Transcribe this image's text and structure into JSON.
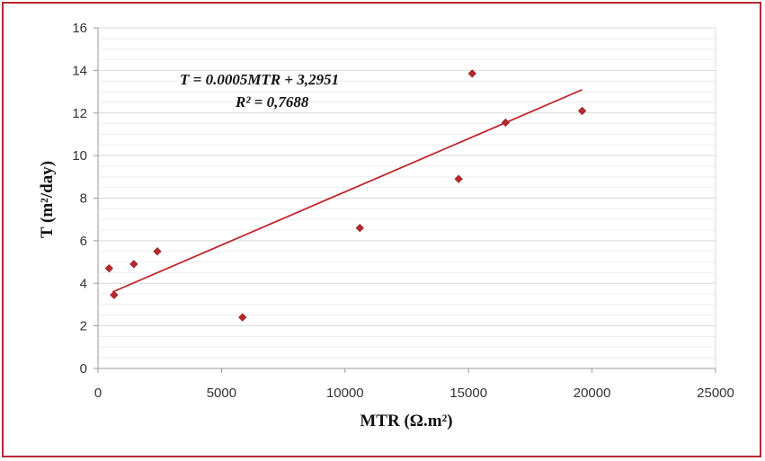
{
  "chart_data": {
    "type": "scatter",
    "xlabel": "MTR (Ω.m²)",
    "ylabel": "T (m²/day)",
    "xlim": [
      0,
      25000
    ],
    "ylim": [
      0,
      16
    ],
    "x_ticks": [
      0,
      5000,
      10000,
      15000,
      20000,
      25000
    ],
    "y_ticks": [
      0,
      2,
      4,
      6,
      8,
      10,
      12,
      14,
      16
    ],
    "grid": "horizontal",
    "marker": "diamond",
    "series": [
      {
        "x": [
          450,
          650,
          1450,
          2400,
          5850,
          10600,
          14600,
          15150,
          16500,
          19600
        ],
        "y": [
          4.7,
          3.45,
          4.9,
          5.5,
          2.4,
          6.6,
          8.9,
          13.85,
          11.55,
          12.1
        ]
      }
    ],
    "trendline": {
      "x_range": [
        600,
        19600
      ],
      "slope": 0.0005,
      "intercept": 3.2951
    },
    "annotations": [
      "T = 0.0005MTR + 3,2951",
      "R² = 0,7688"
    ]
  },
  "colors": {
    "frame": "#b8282f",
    "marker": "#b8282f",
    "trendline": "#c0272d",
    "grid": "#d9d9d9",
    "axis": "#9a9a9a"
  }
}
